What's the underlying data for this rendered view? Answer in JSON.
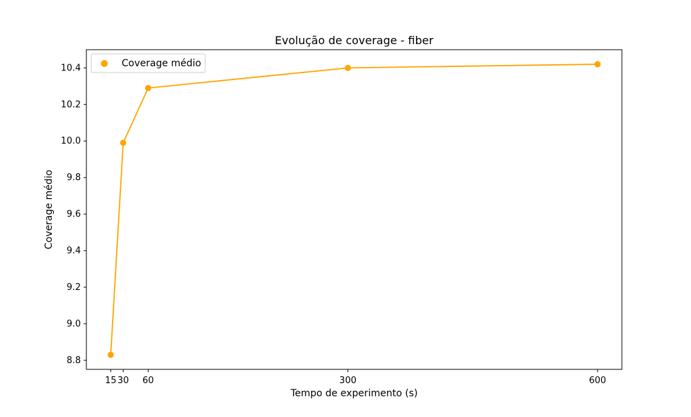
{
  "chart_data": {
    "type": "line",
    "title": "Evolução de coverage - fiber",
    "xlabel": "Tempo de experimento (s)",
    "ylabel": "Coverage médio",
    "x": [
      15,
      30,
      60,
      300,
      600
    ],
    "series": [
      {
        "name": "Coverage médio",
        "values": [
          8.83,
          9.99,
          10.29,
          10.4,
          10.42
        ],
        "color": "#ffa500"
      }
    ],
    "xticks": [
      15,
      30,
      60,
      300,
      600
    ],
    "xtick_labels": [
      "15",
      "30",
      "60",
      "300",
      "600"
    ],
    "yticks": [
      8.8,
      9.0,
      9.2,
      9.4,
      9.6,
      9.8,
      10.0,
      10.2,
      10.4
    ],
    "ytick_labels": [
      "8.8",
      "9.0",
      "9.2",
      "9.4",
      "9.6",
      "9.8",
      "10.0",
      "10.2",
      "10.4"
    ],
    "xlim": [
      -14.25,
      629.25
    ],
    "ylim": [
      8.7505,
      10.4995
    ],
    "grid": false,
    "legend_position": "upper-left"
  }
}
